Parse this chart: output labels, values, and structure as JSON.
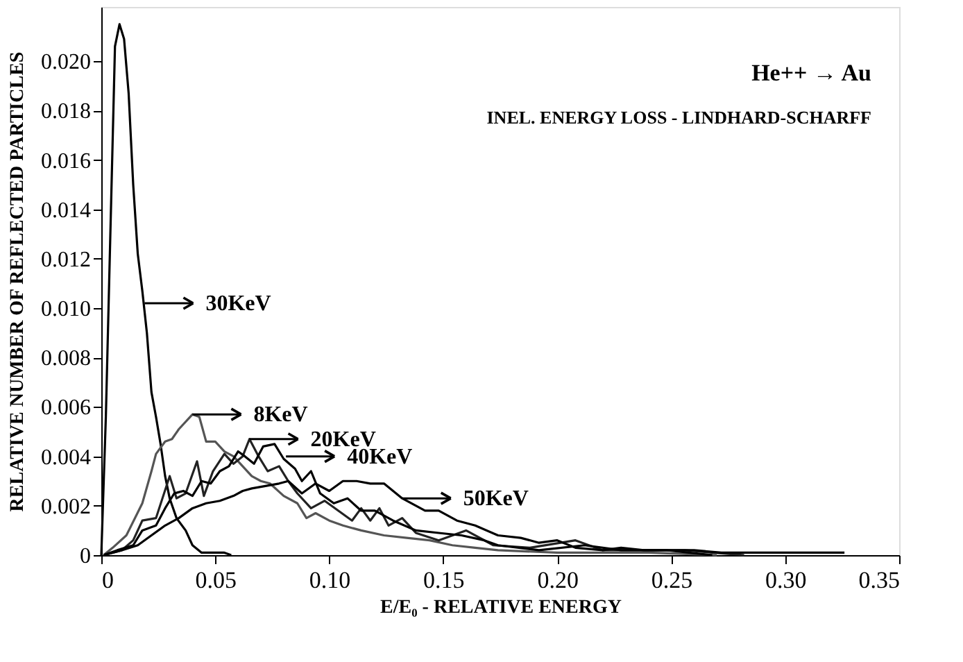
{
  "chart_data": {
    "type": "line",
    "xlabel": "E/E₀ - RELATIVE ENERGY",
    "ylabel": "RELATIVE NUMBER OF REFLECTED PARTICLES",
    "xlim": [
      0,
      0.35
    ],
    "ylim": [
      0,
      0.0222
    ],
    "xticks": [
      0,
      {
        "value": 0.05,
        "label": "0.05"
      },
      {
        "value": 0.1,
        "label": "0.10"
      },
      {
        "value": 0.15,
        "label": "0.15"
      },
      {
        "value": 0.2,
        "label": "0.20"
      },
      {
        "value": 0.25,
        "label": "0.25"
      },
      {
        "value": 0.3,
        "label": "0.30"
      },
      {
        "value": 0.35,
        "label": "0.35"
      }
    ],
    "yticks": [
      0,
      0.002,
      0.004,
      0.006,
      0.008,
      {
        "value": 0.01,
        "label": "0.010"
      },
      0.012,
      0.014,
      0.016,
      0.018,
      {
        "value": 0.02,
        "label": "0.020"
      }
    ],
    "grid": false,
    "legend": false,
    "marker": "none",
    "line_style": "solid",
    "series": [
      {
        "color": "#000000",
        "x": [
          0.0,
          0.002,
          0.004,
          0.006,
          0.008,
          0.01,
          0.012,
          0.014,
          0.016,
          0.018,
          0.02,
          0.022,
          0.024,
          0.026,
          0.028,
          0.03,
          0.033,
          0.037,
          0.04,
          0.044,
          0.054,
          0.057
        ],
        "values": [
          0.0,
          0.0056,
          0.0131,
          0.0206,
          0.0215,
          0.0209,
          0.0187,
          0.015,
          0.0122,
          0.0107,
          0.009,
          0.0066,
          0.0056,
          0.0045,
          0.0032,
          0.0023,
          0.0015,
          0.001,
          0.0004,
          0.0001,
          0.0001,
          0.0
        ]
      },
      {
        "color": "#555555",
        "x": [
          0.001,
          0.005,
          0.011,
          0.018,
          0.022,
          0.024,
          0.028,
          0.031,
          0.034,
          0.04,
          0.043,
          0.046,
          0.05,
          0.054,
          0.058,
          0.062,
          0.066,
          0.07,
          0.074,
          0.08,
          0.086,
          0.09,
          0.094,
          0.1,
          0.106,
          0.114,
          0.124,
          0.134,
          0.144,
          0.154,
          0.164,
          0.174,
          0.2,
          0.24,
          0.27
        ],
        "values": [
          0.0,
          0.0003,
          0.0008,
          0.0021,
          0.0034,
          0.0041,
          0.0046,
          0.0047,
          0.0051,
          0.0057,
          0.0056,
          0.0046,
          0.0046,
          0.0042,
          0.004,
          0.0036,
          0.0032,
          0.003,
          0.0029,
          0.0024,
          0.0021,
          0.0015,
          0.0017,
          0.0014,
          0.0012,
          0.001,
          0.0008,
          0.0007,
          0.0006,
          0.0004,
          0.0003,
          0.0002,
          0.0001,
          0.0001,
          0.0
        ]
      },
      {
        "color": "#222222",
        "x": [
          0.001,
          0.009,
          0.014,
          0.018,
          0.024,
          0.03,
          0.033,
          0.037,
          0.042,
          0.045,
          0.049,
          0.054,
          0.058,
          0.062,
          0.065,
          0.069,
          0.073,
          0.078,
          0.082,
          0.086,
          0.092,
          0.098,
          0.104,
          0.11,
          0.114,
          0.118,
          0.122,
          0.126,
          0.132,
          0.138,
          0.148,
          0.16,
          0.172,
          0.188,
          0.208,
          0.22,
          0.238,
          0.256,
          0.268,
          0.282
        ],
        "values": [
          0.0,
          0.0002,
          0.0006,
          0.0014,
          0.0015,
          0.0032,
          0.0023,
          0.0025,
          0.0038,
          0.0024,
          0.0034,
          0.0041,
          0.0037,
          0.004,
          0.0047,
          0.004,
          0.0034,
          0.0036,
          0.003,
          0.0025,
          0.0019,
          0.0022,
          0.0018,
          0.0014,
          0.0019,
          0.0014,
          0.0019,
          0.0012,
          0.0015,
          0.0009,
          0.0006,
          0.001,
          0.0004,
          0.0003,
          0.0006,
          0.0002,
          0.0002,
          0.0002,
          0.0001,
          0.0
        ]
      },
      {
        "color": "#000000",
        "x": [
          0.001,
          0.007,
          0.014,
          0.018,
          0.024,
          0.028,
          0.032,
          0.036,
          0.04,
          0.044,
          0.048,
          0.052,
          0.056,
          0.06,
          0.063,
          0.067,
          0.071,
          0.076,
          0.08,
          0.085,
          0.088,
          0.092,
          0.096,
          0.102,
          0.108,
          0.114,
          0.12,
          0.128,
          0.138,
          0.148,
          0.158,
          0.168,
          0.174,
          0.192,
          0.212,
          0.228,
          0.248,
          0.268
        ],
        "values": [
          0.0,
          0.0002,
          0.0004,
          0.001,
          0.0012,
          0.0019,
          0.0025,
          0.0026,
          0.0024,
          0.003,
          0.0029,
          0.0034,
          0.0036,
          0.0042,
          0.004,
          0.0037,
          0.0044,
          0.0045,
          0.0039,
          0.0035,
          0.003,
          0.0034,
          0.0025,
          0.0021,
          0.0023,
          0.0018,
          0.0018,
          0.0014,
          0.001,
          0.0009,
          0.0008,
          0.0006,
          0.0004,
          0.0002,
          0.0004,
          0.0002,
          0.0002,
          0.0
        ]
      },
      {
        "color": "#000000",
        "x": [
          0.001,
          0.009,
          0.016,
          0.022,
          0.028,
          0.034,
          0.04,
          0.046,
          0.052,
          0.058,
          0.062,
          0.066,
          0.072,
          0.078,
          0.082,
          0.088,
          0.094,
          0.1,
          0.106,
          0.112,
          0.118,
          0.124,
          0.132,
          0.142,
          0.148,
          0.156,
          0.164,
          0.174,
          0.184,
          0.192,
          0.2,
          0.208,
          0.22,
          0.228,
          0.238,
          0.248,
          0.26,
          0.272,
          0.288,
          0.298,
          0.326
        ],
        "values": [
          0.0,
          0.0002,
          0.0004,
          0.0008,
          0.0012,
          0.0015,
          0.0019,
          0.0021,
          0.0022,
          0.0024,
          0.0026,
          0.0027,
          0.0028,
          0.0029,
          0.003,
          0.0025,
          0.0029,
          0.0026,
          0.003,
          0.003,
          0.0029,
          0.0029,
          0.0023,
          0.0018,
          0.0018,
          0.0014,
          0.0012,
          0.0008,
          0.0007,
          0.0005,
          0.0006,
          0.0003,
          0.0002,
          0.0003,
          0.0002,
          0.0002,
          0.0002,
          0.0001,
          0.0001,
          0.0001,
          0.0001
        ]
      }
    ],
    "annotations": [
      "He++ → Au",
      "INEL. ENERGY LOSS - LINDHARD-SCHARFF",
      {
        "text": "30KeV",
        "x": 0.019,
        "y": 0.0102
      },
      {
        "text": "8KeV",
        "x": 0.04,
        "y": 0.0057
      },
      {
        "text": "20KeV",
        "x": 0.065,
        "y": 0.0047
      },
      {
        "text": "40KeV",
        "x": 0.081,
        "y": 0.004
      },
      {
        "text": "50KeV",
        "x": 0.132,
        "y": 0.0023
      }
    ]
  }
}
